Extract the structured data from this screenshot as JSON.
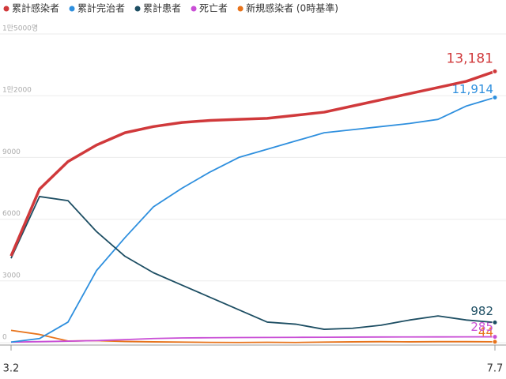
{
  "chart_data": {
    "type": "line",
    "categories": [
      "3.2",
      null,
      null,
      null,
      null,
      null,
      null,
      null,
      null,
      null,
      null,
      null,
      null,
      null,
      null,
      null,
      null,
      "7.7"
    ],
    "series": [
      {
        "name": "累計感染者",
        "color": "#d0393b",
        "values": [
          4212,
          7460,
          8800,
          9600,
          10200,
          10500,
          10700,
          10800,
          10850,
          10900,
          11050,
          11200,
          11500,
          11800,
          12100,
          12400,
          12700,
          13181
        ],
        "value_labels": [
          null,
          null,
          null,
          null,
          null,
          null,
          null,
          null,
          null,
          null,
          null,
          null,
          null,
          null,
          null,
          null,
          null,
          "13,181"
        ]
      },
      {
        "name": "累計完治者",
        "color": "#2e8fde",
        "values": [
          30,
          200,
          1000,
          3500,
          5100,
          6600,
          7500,
          8300,
          9000,
          9400,
          9800,
          10200,
          10350,
          10500,
          10650,
          10850,
          11500,
          11914
        ],
        "value_labels": [
          null,
          null,
          null,
          null,
          null,
          null,
          null,
          null,
          null,
          null,
          null,
          null,
          null,
          null,
          null,
          null,
          null,
          "11,914"
        ]
      },
      {
        "name": "累計患者",
        "color": "#1d4e63",
        "values": [
          4100,
          7100,
          6900,
          5400,
          4200,
          3400,
          2800,
          2200,
          1600,
          1000,
          900,
          650,
          700,
          850,
          1100,
          1300,
          1100,
          982
        ]
      },
      {
        "name": "死亡者",
        "color": "#c94fd6",
        "values": [
          28,
          50,
          75,
          100,
          150,
          200,
          230,
          240,
          250,
          255,
          260,
          265,
          270,
          275,
          278,
          280,
          282,
          285
        ]
      },
      {
        "name": "新規感染者 (0時基準)",
        "color": "#e8741c",
        "values": [
          600,
          400,
          80,
          100,
          60,
          40,
          30,
          15,
          10,
          20,
          10,
          30,
          40,
          50,
          40,
          50,
          50,
          44
        ]
      }
    ],
    "ylim": [
      0,
      15000
    ],
    "yticks": [
      0,
      3000,
      6000,
      9000,
      {
        "value": 12000,
        "label": "1만2000"
      },
      {
        "value": 15000,
        "label": "1만5000명"
      }
    ],
    "grid": true
  }
}
